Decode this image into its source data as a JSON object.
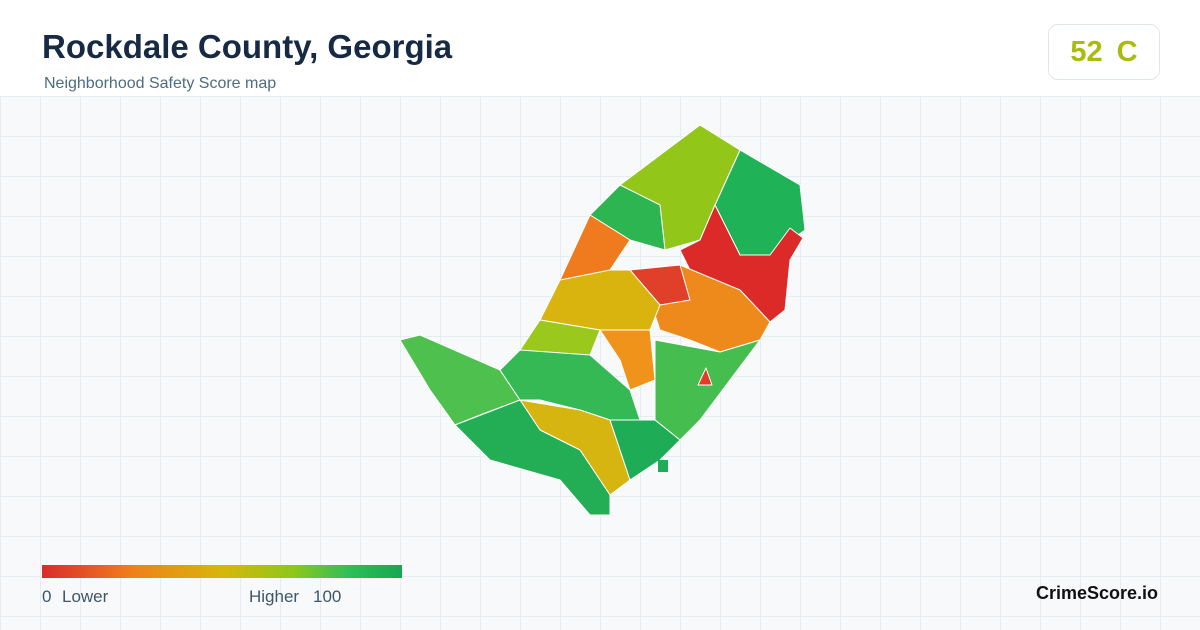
{
  "header": {
    "title": "Rockdale County, Georgia",
    "subtitle": "Neighborhood Safety Score map"
  },
  "score": {
    "value": 52,
    "grade": "C"
  },
  "legend": {
    "min": 0,
    "min_label": "Lower",
    "max_label": "Higher",
    "max": 100
  },
  "brand": "CrimeScore.io"
}
